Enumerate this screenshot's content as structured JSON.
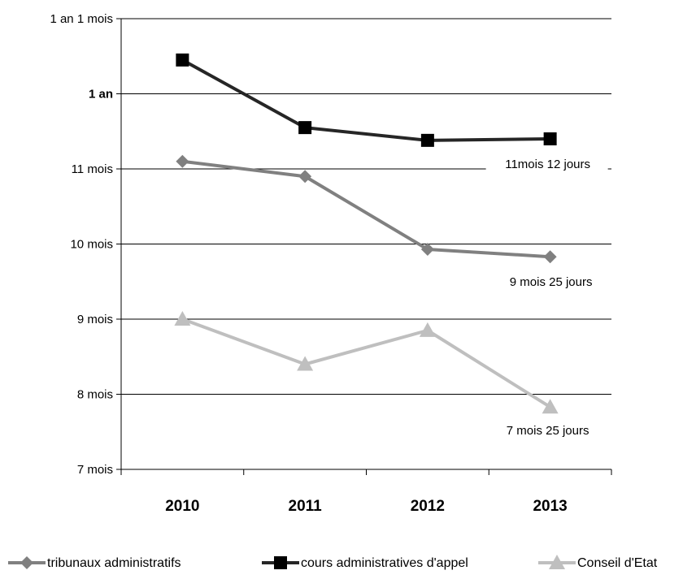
{
  "chart_data": {
    "type": "line",
    "categories": [
      "2010",
      "2011",
      "2012",
      "2013"
    ],
    "ylim": [
      7,
      13
    ],
    "y_ticks": [
      {
        "value": 7,
        "label": "7 mois"
      },
      {
        "value": 8,
        "label": "8 mois"
      },
      {
        "value": 9,
        "label": "9 mois"
      },
      {
        "value": 10,
        "label": "10 mois"
      },
      {
        "value": 11,
        "label": "11 mois"
      },
      {
        "value": 12,
        "label": "1 an",
        "bold": true
      },
      {
        "value": 13,
        "label": "1 an 1 mois"
      }
    ],
    "y_unit": "months",
    "grid": true,
    "legend_position": "bottom",
    "series": [
      {
        "name": "tribunaux administratifs",
        "marker": "diamond",
        "color": "#808080",
        "values": [
          11.1,
          10.9,
          9.93,
          9.83
        ],
        "last_label": "9 mois 25 jours"
      },
      {
        "name": "cours administratives d'appel",
        "marker": "square",
        "color": "#262626",
        "values": [
          12.45,
          11.55,
          11.38,
          11.4
        ],
        "last_label": "11mois 12 jours"
      },
      {
        "name": "Conseil d'Etat",
        "marker": "triangle",
        "color": "#bfbfbf",
        "values": [
          9.0,
          8.4,
          8.85,
          7.83
        ],
        "last_label": "7 mois 25 jours"
      }
    ]
  }
}
